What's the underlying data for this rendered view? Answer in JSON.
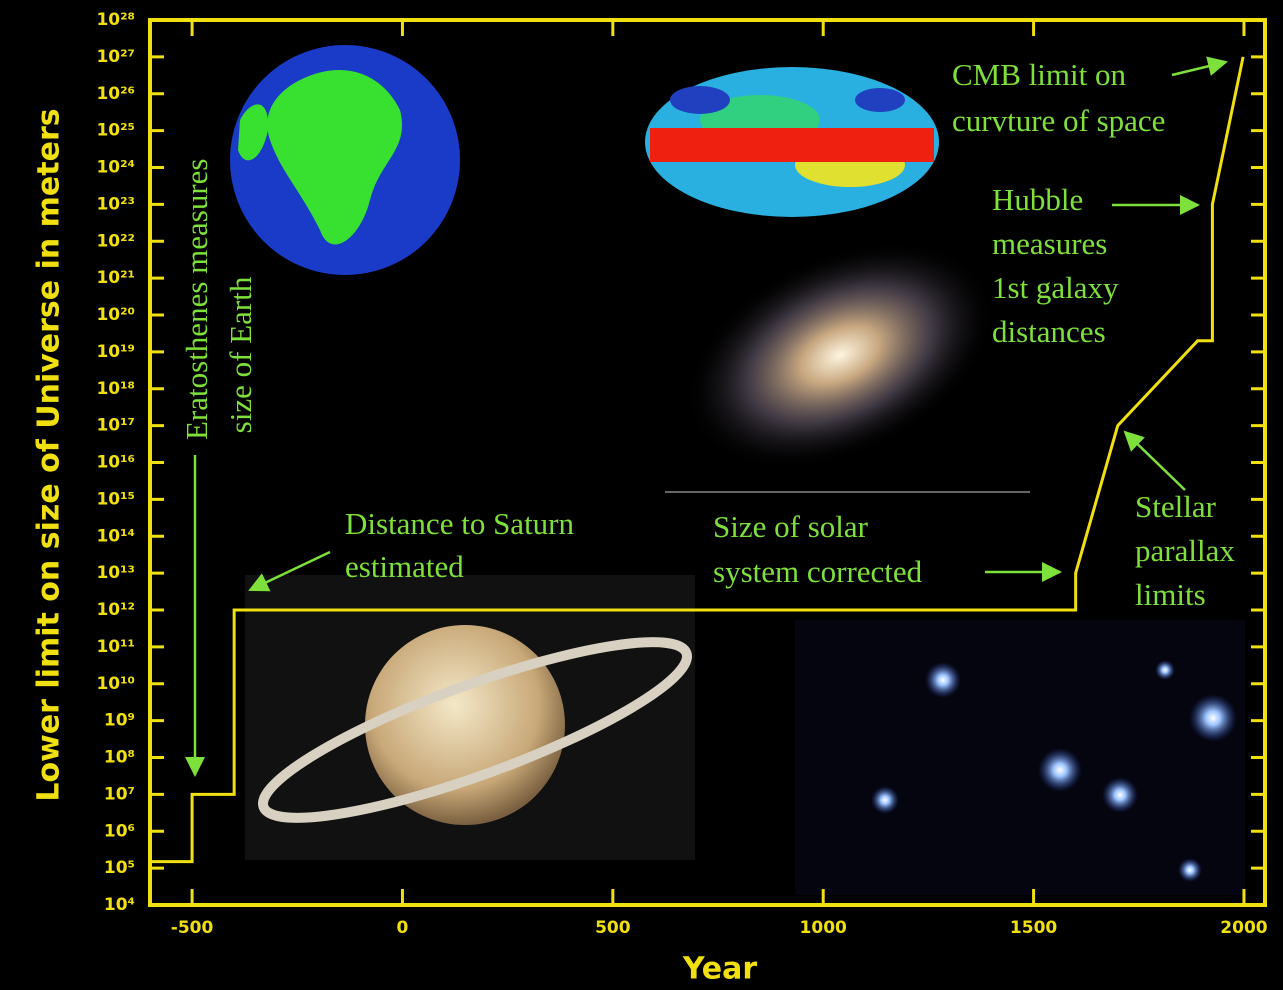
{
  "chart_data": {
    "type": "line",
    "xlabel": "Year",
    "ylabel": "Lower limit on size of Universe in meters",
    "x": [
      -600,
      -500,
      -500,
      -400,
      -400,
      1600,
      1600,
      1700,
      1890,
      1925,
      1925,
      1998
    ],
    "values": [
      150000,
      150000,
      10000000,
      10000000,
      1000000000000,
      1000000000000,
      10000000000000,
      100000000000000000,
      20000000000000000000,
      20000000000000000000,
      1e+23,
      1e+27
    ],
    "color": "#f0e010",
    "xlim": [
      -600,
      2050
    ],
    "xticks": [
      -500,
      0,
      500,
      1000,
      1500,
      2000
    ],
    "ylim": [
      10000,
      1e+28
    ],
    "log_y": true,
    "yticks": [
      {
        "value": 10000,
        "label": "10⁴"
      },
      {
        "value": 100000,
        "label": "10⁵"
      },
      {
        "value": 1000000,
        "label": "10⁶"
      },
      {
        "value": 10000000,
        "label": "10⁷"
      },
      {
        "value": 100000000,
        "label": "10⁸"
      },
      {
        "value": 1000000000,
        "label": "10⁹"
      },
      {
        "value": 10000000000,
        "label": "10¹⁰"
      },
      {
        "value": 100000000000,
        "label": "10¹¹"
      },
      {
        "value": 1000000000000,
        "label": "10¹²"
      },
      {
        "value": 10000000000000,
        "label": "10¹³"
      },
      {
        "value": 100000000000000,
        "label": "10¹⁴"
      },
      {
        "value": 1000000000000000,
        "label": "10¹⁵"
      },
      {
        "value": 10000000000000000,
        "label": "10¹⁶"
      },
      {
        "value": 100000000000000000,
        "label": "10¹⁷"
      },
      {
        "value": 1000000000000000000,
        "label": "10¹⁸"
      },
      {
        "value": 10000000000000000000,
        "label": "10¹⁹"
      },
      {
        "value": 1e+20,
        "label": "10²⁰"
      },
      {
        "value": 1e+21,
        "label": "10²¹"
      },
      {
        "value": 1e+22,
        "label": "10²²"
      },
      {
        "value": 1e+23,
        "label": "10²³"
      },
      {
        "value": 1e+24,
        "label": "10²⁴"
      },
      {
        "value": 1e+25,
        "label": "10²⁵"
      },
      {
        "value": 1e+26,
        "label": "10²⁶"
      },
      {
        "value": 1e+27,
        "label": "10²⁷"
      },
      {
        "value": 1e+28,
        "label": "10²⁸"
      }
    ],
    "annotations": [
      {
        "lines": [
          "Eratosthenes measures",
          "size of Earth"
        ]
      },
      {
        "lines": [
          "Distance to Saturn",
          "estimated"
        ]
      },
      {
        "lines": [
          "Size of solar",
          "system corrected"
        ]
      },
      {
        "lines": [
          "Stellar",
          "parallax",
          "limits"
        ]
      },
      {
        "lines": [
          "Hubble",
          "measures",
          "1st galaxy",
          "distances"
        ]
      },
      {
        "lines": [
          "CMB limit on",
          "curvture of space"
        ]
      }
    ]
  }
}
